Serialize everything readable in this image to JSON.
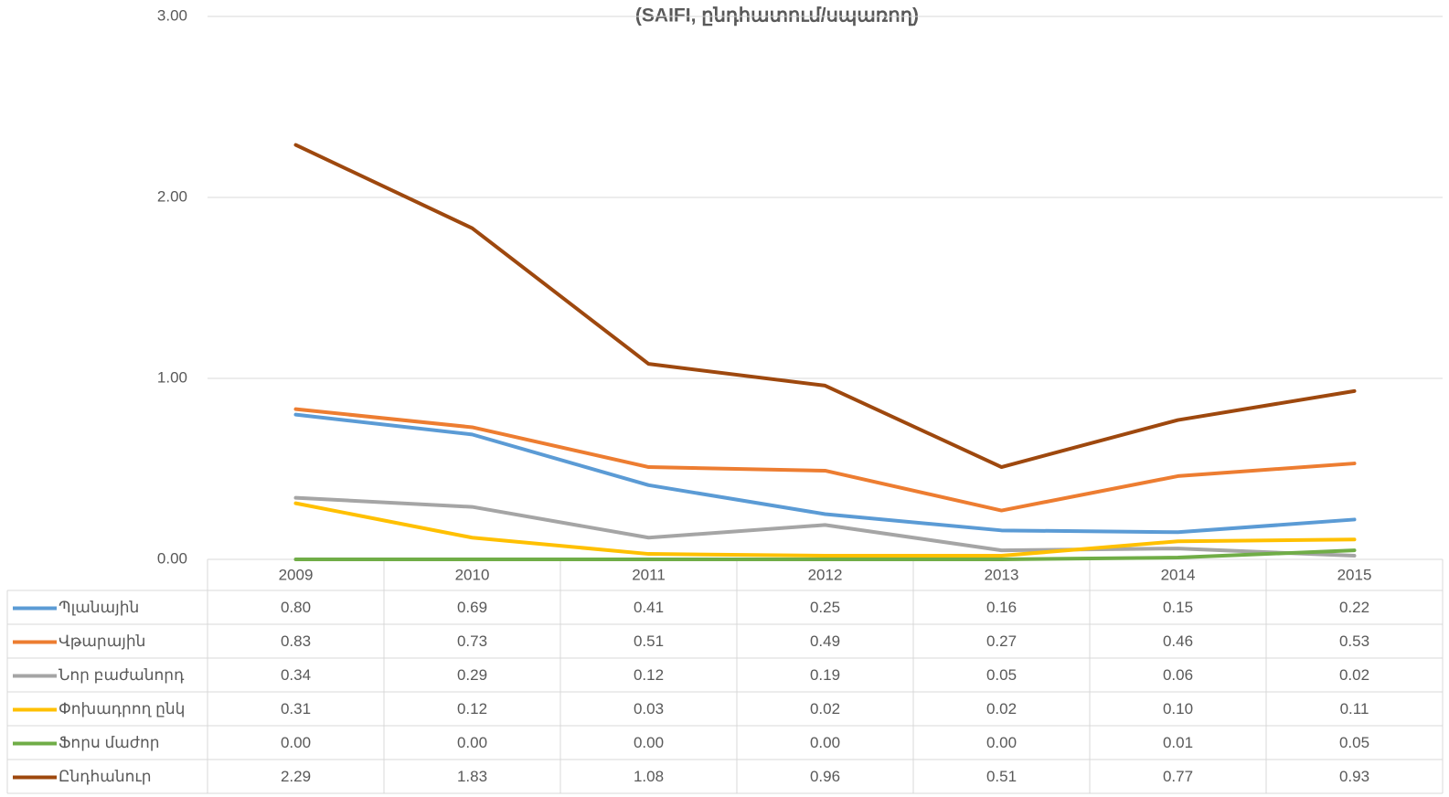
{
  "chart_data": {
    "type": "line",
    "title": "(SAIFI, ընդհատում/սպառող)",
    "categories": [
      "2009",
      "2010",
      "2011",
      "2012",
      "2013",
      "2014",
      "2015"
    ],
    "ylim": [
      0,
      3
    ],
    "yticks": [
      {
        "value": 0,
        "label": "0.00"
      },
      {
        "value": 1,
        "label": "1.00"
      },
      {
        "value": 2,
        "label": "2.00"
      },
      {
        "value": 3,
        "label": "3.00"
      }
    ],
    "grid": true,
    "series": [
      {
        "name": "Պլանային",
        "color": "#5b9bd5",
        "values": [
          0.8,
          0.69,
          0.41,
          0.25,
          0.16,
          0.15,
          0.22
        ],
        "value_labels": [
          "0.80",
          "0.69",
          "0.41",
          "0.25",
          "0.16",
          "0.15",
          "0.22"
        ]
      },
      {
        "name": "Վթարային",
        "color": "#ed7d31",
        "values": [
          0.83,
          0.73,
          0.51,
          0.49,
          0.27,
          0.46,
          0.53
        ],
        "value_labels": [
          "0.83",
          "0.73",
          "0.51",
          "0.49",
          "0.27",
          "0.46",
          "0.53"
        ]
      },
      {
        "name": "Նոր բաժանորդ",
        "color": "#a5a5a5",
        "values": [
          0.34,
          0.29,
          0.12,
          0.19,
          0.05,
          0.06,
          0.02
        ],
        "value_labels": [
          "0.34",
          "0.29",
          "0.12",
          "0.19",
          "0.05",
          "0.06",
          "0.02"
        ]
      },
      {
        "name": "Փոխադրող ընկ",
        "color": "#ffc000",
        "values": [
          0.31,
          0.12,
          0.03,
          0.02,
          0.02,
          0.1,
          0.11
        ],
        "value_labels": [
          "0.31",
          "0.12",
          "0.03",
          "0.02",
          "0.02",
          "0.10",
          "0.11"
        ]
      },
      {
        "name": "Ֆորս մաժոր",
        "color": "#70ad47",
        "values": [
          0,
          0,
          0,
          0,
          0,
          0.01,
          0.05
        ],
        "value_labels": [
          "0.00",
          "0.00",
          "0.00",
          "0.00",
          "0.00",
          "0.01",
          "0.05"
        ]
      },
      {
        "name": "Ընդհանուր",
        "color": "#9e480e",
        "values": [
          2.29,
          1.83,
          1.08,
          0.96,
          0.51,
          0.77,
          0.93
        ],
        "value_labels": [
          "2.29",
          "1.83",
          "1.08",
          "0.96",
          "0.51",
          "0.77",
          "0.93"
        ]
      }
    ]
  }
}
